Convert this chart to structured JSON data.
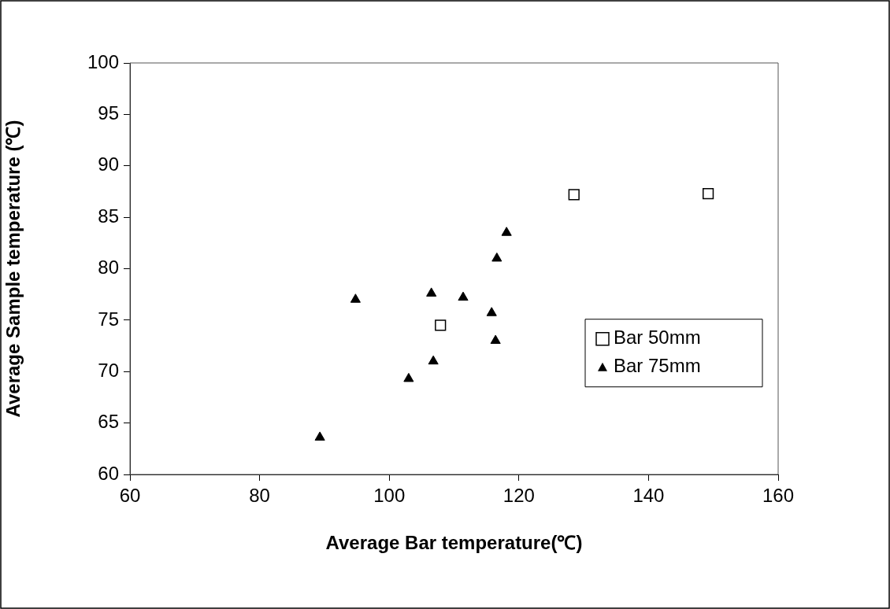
{
  "chart_data": {
    "type": "scatter",
    "xlabel": "Average Bar temperature(℃)",
    "ylabel": "Average Sample temperature (℃)",
    "xlim": [
      60,
      160
    ],
    "xticks": [
      60,
      80,
      100,
      120,
      140,
      160
    ],
    "ylim": [
      60,
      100
    ],
    "yticks": [
      60,
      65,
      70,
      75,
      80,
      85,
      90,
      95,
      100
    ],
    "grid": false,
    "legend": "bottom right",
    "series": [
      {
        "name": "Bar 50mm",
        "color": "#000000",
        "marker": "square",
        "x": [
          107.9,
          128.5,
          149.2
        ],
        "values": [
          74.5,
          87.2,
          87.3
        ]
      },
      {
        "name": "Bar 75mm",
        "color": "#000000",
        "marker": "triangle",
        "x": [
          89.3,
          94.8,
          103.0,
          106.5,
          106.8,
          111.4,
          115.8,
          116.4,
          116.6,
          118.1
        ],
        "values": [
          63.6,
          77.0,
          69.3,
          77.6,
          71.0,
          77.2,
          75.7,
          73.0,
          81.0,
          83.5
        ]
      }
    ]
  }
}
